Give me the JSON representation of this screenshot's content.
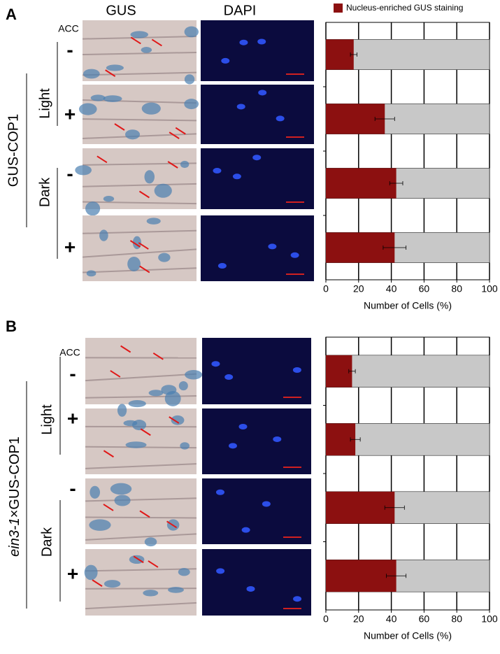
{
  "figure": {
    "panels": [
      {
        "label": "A",
        "columns": [
          "GUS",
          "DAPI"
        ],
        "treatment": "ACC",
        "conditions": [
          "Light",
          "Dark"
        ],
        "signs": [
          "-",
          "+",
          "-",
          "+"
        ],
        "genotype": [
          "GUS-COP1"
        ]
      },
      {
        "label": "B",
        "treatment": "ACC",
        "conditions": [
          "Light",
          "Dark"
        ],
        "signs": [
          "-",
          "+",
          "-",
          "+"
        ],
        "genotype": [
          "ein3-1",
          "×GUS-COP1"
        ]
      }
    ]
  },
  "chart_data": [
    {
      "type": "bar",
      "orientation": "horizontal",
      "categories": [
        null,
        null,
        null,
        null
      ],
      "series": [
        {
          "name": "Nucleus-enriched GUS staining",
          "color": "#8c1010",
          "values": [
            17,
            36,
            43,
            42
          ],
          "errors": [
            2,
            6,
            4,
            7
          ]
        }
      ],
      "track_color": "#c8c8c8",
      "legend": "top",
      "grid": true,
      "xlim": [
        0,
        100
      ],
      "xticks": [
        0,
        20,
        40,
        60,
        80,
        100
      ],
      "xlabel": "Number of Cells (%)"
    },
    {
      "type": "bar",
      "orientation": "horizontal",
      "categories": [
        null,
        null,
        null,
        null
      ],
      "series": [
        {
          "color": "#8c1010",
          "values": [
            16,
            18,
            42,
            43
          ],
          "errors": [
            2,
            3,
            6,
            6
          ]
        }
      ],
      "track_color": "#c8c8c8",
      "grid": true,
      "xlim": [
        0,
        100
      ],
      "xticks": [
        0,
        20,
        40,
        60,
        80,
        100
      ],
      "xlabel": "Number of Cells (%)"
    }
  ]
}
